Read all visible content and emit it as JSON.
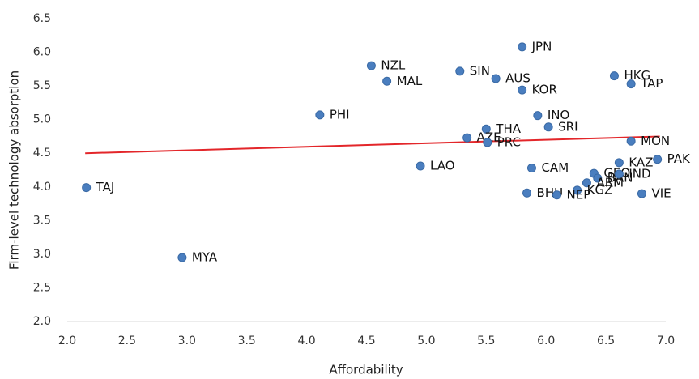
{
  "chart_data": {
    "type": "scatter",
    "x_label": "Affordability",
    "y_label": "Firm-level technology absorption",
    "labels": [
      "TAJ",
      "MYA",
      "PHI",
      "NZL",
      "MAL",
      "LAO",
      "SIN",
      "AUS",
      "JPN",
      "KOR",
      "HKG",
      "TAP",
      "INO",
      "SRI",
      "THA",
      "AZE",
      "PRC",
      "MON",
      "PAK",
      "KAZ",
      "CAM",
      "GEO",
      "BAN",
      "IND",
      "ARM",
      "KGZ",
      "BHU",
      "NEP",
      "VIE"
    ],
    "x": [
      2.16,
      2.96,
      4.11,
      4.54,
      4.67,
      4.95,
      5.28,
      5.58,
      5.8,
      5.8,
      6.57,
      6.71,
      5.93,
      6.02,
      5.5,
      5.34,
      5.51,
      6.71,
      6.93,
      6.61,
      5.88,
      6.4,
      6.43,
      6.61,
      6.34,
      6.26,
      5.84,
      6.09,
      6.8
    ],
    "y": [
      3.99,
      2.95,
      5.07,
      5.8,
      5.57,
      4.31,
      5.72,
      5.61,
      6.08,
      5.44,
      5.65,
      5.53,
      5.06,
      4.89,
      4.86,
      4.73,
      4.66,
      4.68,
      4.41,
      4.36,
      4.28,
      4.2,
      4.13,
      4.19,
      4.06,
      3.95,
      3.91,
      3.88,
      3.9
    ],
    "color": "#4a7ebf",
    "trendline": {
      "x": [
        2.15,
        6.95
      ],
      "y": [
        4.5,
        4.75
      ],
      "color": "#e3262a"
    },
    "xlim": [
      2.0,
      7.0
    ],
    "ylim": [
      2.0,
      6.5
    ],
    "xticks": [
      {
        "value": 2,
        "label": "2.0"
      },
      2.5,
      {
        "value": 3,
        "label": "3.0"
      },
      3.5,
      {
        "value": 4,
        "label": "4.0"
      },
      4.5,
      {
        "value": 5,
        "label": "5.0"
      },
      5.5,
      {
        "value": 6,
        "label": "6.0"
      },
      6.5,
      {
        "value": 7,
        "label": "7.0"
      }
    ],
    "yticks": [
      {
        "value": 2,
        "label": "2.0"
      },
      2.5,
      {
        "value": 3,
        "label": "3.0"
      },
      3.5,
      {
        "value": 4,
        "label": "4.0"
      },
      4.5,
      {
        "value": 5,
        "label": "5.0"
      },
      5.5,
      {
        "value": 6,
        "label": "6.0"
      },
      6.5
    ],
    "grid": false
  }
}
